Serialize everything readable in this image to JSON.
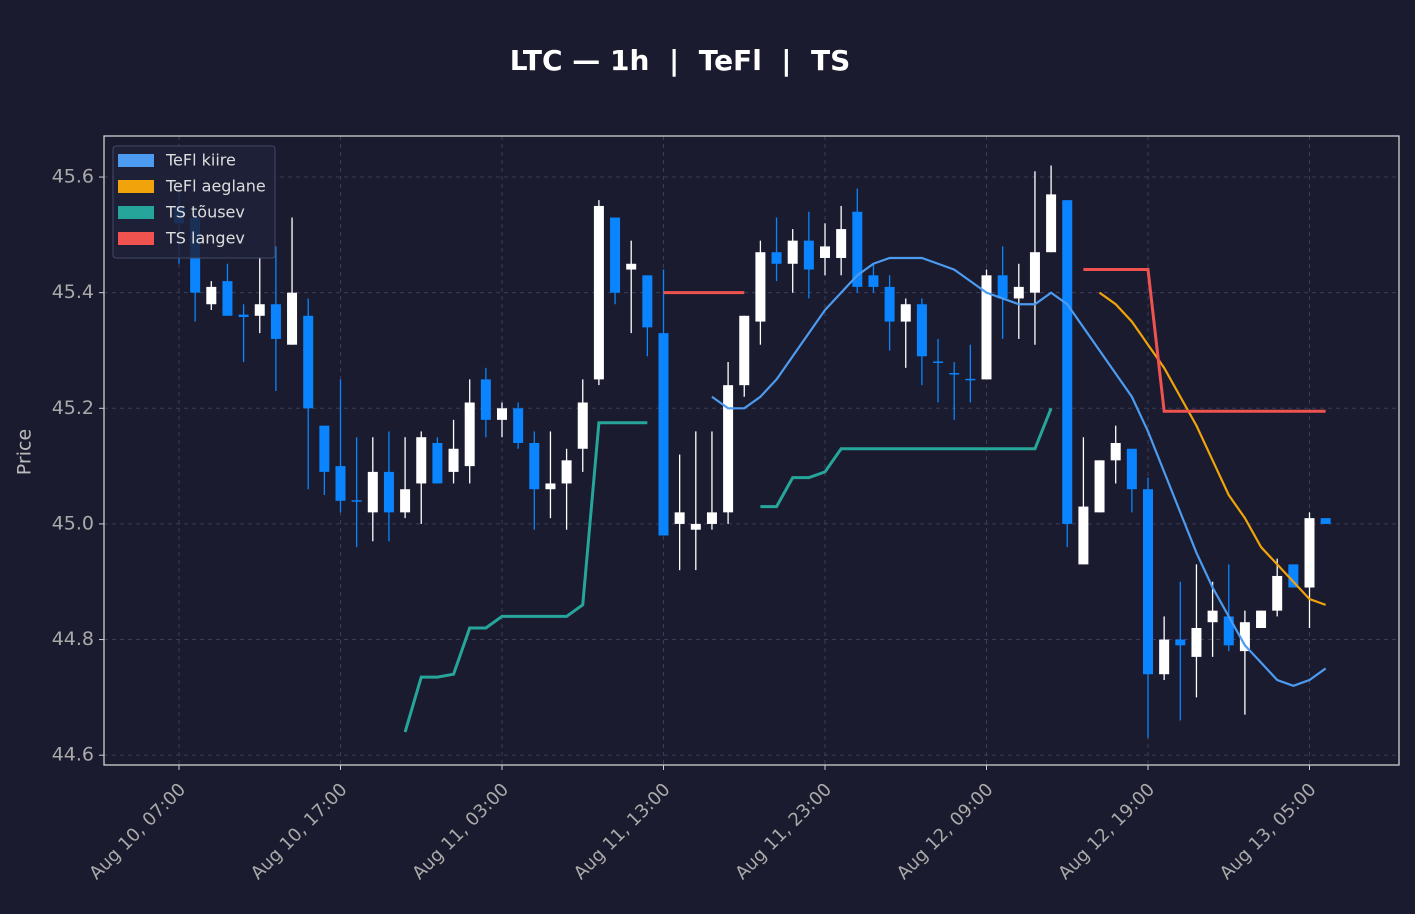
{
  "chart_data": {
    "type": "candlestick",
    "title": "LTC — 1h  |  TeFl  |  TS",
    "ylabel": "Price",
    "x": [
      "Aug 10, 07:00",
      "Aug 10, 08:00",
      "Aug 10, 09:00",
      "Aug 10, 10:00",
      "Aug 10, 11:00",
      "Aug 10, 12:00",
      "Aug 10, 13:00",
      "Aug 10, 14:00",
      "Aug 10, 15:00",
      "Aug 10, 16:00",
      "Aug 10, 17:00",
      "Aug 10, 18:00",
      "Aug 10, 19:00",
      "Aug 10, 20:00",
      "Aug 10, 21:00",
      "Aug 10, 22:00",
      "Aug 10, 23:00",
      "Aug 11, 00:00",
      "Aug 11, 01:00",
      "Aug 11, 02:00",
      "Aug 11, 03:00",
      "Aug 11, 04:00",
      "Aug 11, 05:00",
      "Aug 11, 06:00",
      "Aug 11, 07:00",
      "Aug 11, 08:00",
      "Aug 11, 09:00",
      "Aug 11, 10:00",
      "Aug 11, 11:00",
      "Aug 11, 12:00",
      "Aug 11, 13:00",
      "Aug 11, 14:00",
      "Aug 11, 15:00",
      "Aug 11, 16:00",
      "Aug 11, 17:00",
      "Aug 11, 18:00",
      "Aug 11, 19:00",
      "Aug 11, 20:00",
      "Aug 11, 21:00",
      "Aug 11, 22:00",
      "Aug 11, 23:00",
      "Aug 12, 00:00",
      "Aug 12, 01:00",
      "Aug 12, 02:00",
      "Aug 12, 03:00",
      "Aug 12, 04:00",
      "Aug 12, 05:00",
      "Aug 12, 06:00",
      "Aug 12, 07:00",
      "Aug 12, 08:00",
      "Aug 12, 09:00",
      "Aug 12, 10:00",
      "Aug 12, 11:00",
      "Aug 12, 12:00",
      "Aug 12, 13:00",
      "Aug 12, 14:00",
      "Aug 12, 15:00",
      "Aug 12, 16:00",
      "Aug 12, 17:00",
      "Aug 12, 18:00",
      "Aug 12, 19:00",
      "Aug 12, 20:00",
      "Aug 12, 21:00",
      "Aug 12, 22:00",
      "Aug 12, 23:00",
      "Aug 13, 00:00",
      "Aug 13, 01:00",
      "Aug 13, 02:00",
      "Aug 13, 03:00",
      "Aug 13, 04:00",
      "Aug 13, 05:00",
      "Aug 13, 06:00"
    ],
    "open": [
      45.55,
      45.53,
      45.38,
      45.42,
      45.362,
      45.36,
      45.38,
      45.31,
      45.36,
      45.17,
      45.1,
      45.041,
      45.02,
      45.09,
      45.02,
      45.07,
      45.14,
      45.09,
      45.1,
      45.25,
      45.18,
      45.2,
      45.14,
      45.06,
      45.07,
      45.13,
      45.25,
      45.53,
      45.44,
      45.43,
      45.33,
      45.0,
      44.99,
      45.0,
      45.02,
      45.24,
      45.35,
      45.47,
      45.45,
      45.49,
      45.46,
      45.46,
      45.54,
      45.43,
      45.41,
      45.35,
      45.38,
      45.281,
      45.261,
      45.251,
      45.25,
      45.43,
      45.39,
      45.4,
      45.47,
      45.56,
      44.93,
      45.02,
      45.11,
      45.13,
      45.06,
      44.74,
      44.8,
      44.77,
      44.83,
      44.84,
      44.78,
      44.82,
      44.85,
      44.93,
      44.89,
      45.01
    ],
    "high": [
      45.58,
      45.55,
      45.42,
      45.45,
      45.38,
      45.46,
      45.48,
      45.53,
      45.39,
      45.17,
      45.25,
      45.15,
      45.15,
      45.16,
      45.15,
      45.16,
      45.15,
      45.18,
      45.25,
      45.27,
      45.21,
      45.21,
      45.16,
      45.16,
      45.13,
      45.25,
      45.56,
      45.53,
      45.49,
      45.43,
      45.44,
      45.12,
      45.16,
      45.16,
      45.28,
      45.36,
      45.49,
      45.53,
      45.51,
      45.54,
      45.52,
      45.55,
      45.58,
      45.45,
      45.43,
      45.39,
      45.39,
      45.32,
      45.28,
      45.31,
      45.44,
      45.48,
      45.45,
      45.61,
      45.62,
      45.56,
      45.15,
      45.11,
      45.17,
      45.13,
      45.08,
      44.84,
      44.9,
      44.93,
      44.9,
      44.93,
      44.85,
      44.85,
      44.94,
      44.93,
      45.02,
      45.01
    ],
    "low": [
      45.45,
      45.35,
      45.37,
      45.36,
      45.28,
      45.33,
      45.23,
      45.31,
      45.06,
      45.05,
      45.02,
      44.96,
      44.97,
      44.97,
      45.01,
      45.0,
      45.07,
      45.07,
      45.07,
      45.15,
      45.15,
      45.13,
      44.99,
      45.01,
      44.99,
      45.09,
      45.24,
      45.38,
      45.33,
      45.29,
      44.98,
      44.92,
      44.92,
      44.99,
      45.0,
      45.22,
      45.31,
      45.42,
      45.4,
      45.39,
      45.43,
      45.43,
      45.4,
      45.4,
      45.3,
      45.27,
      45.24,
      45.21,
      45.18,
      45.21,
      45.25,
      45.32,
      45.32,
      45.31,
      45.47,
      44.96,
      44.93,
      45.02,
      45.07,
      45.02,
      44.63,
      44.73,
      44.66,
      44.7,
      44.77,
      44.78,
      44.67,
      44.82,
      44.84,
      44.89,
      44.82,
      45.0
    ],
    "close": [
      45.52,
      45.4,
      45.41,
      45.36,
      45.358,
      45.38,
      45.32,
      45.4,
      45.2,
      45.09,
      45.04,
      45.039,
      45.09,
      45.02,
      45.06,
      45.15,
      45.07,
      45.13,
      45.21,
      45.18,
      45.2,
      45.14,
      45.06,
      45.07,
      45.11,
      45.21,
      45.55,
      45.4,
      45.45,
      45.34,
      44.98,
      45.02,
      45.0,
      45.02,
      45.24,
      45.36,
      45.47,
      45.45,
      45.49,
      45.44,
      45.48,
      45.51,
      45.41,
      45.41,
      45.35,
      45.38,
      45.29,
      45.279,
      45.259,
      45.249,
      45.43,
      45.39,
      45.41,
      45.47,
      45.57,
      45.0,
      45.03,
      45.11,
      45.14,
      45.06,
      44.74,
      44.8,
      44.79,
      44.82,
      44.85,
      44.79,
      44.83,
      44.85,
      44.91,
      44.89,
      45.01,
      45.0
    ],
    "up_color": "#ffffff",
    "down_color": "#0a84ff",
    "series": [
      {
        "name": "TeFl kiire",
        "color": "#4c9bf0",
        "values": [
          null,
          null,
          null,
          null,
          null,
          null,
          null,
          null,
          null,
          null,
          null,
          null,
          null,
          null,
          null,
          null,
          null,
          null,
          null,
          null,
          null,
          null,
          null,
          null,
          null,
          null,
          null,
          null,
          null,
          null,
          null,
          null,
          null,
          45.22,
          45.2,
          45.2,
          45.22,
          45.25,
          45.29,
          45.33,
          45.37,
          45.4,
          45.43,
          45.45,
          45.46,
          45.46,
          45.46,
          45.45,
          45.44,
          45.42,
          45.4,
          45.39,
          45.38,
          45.38,
          45.4,
          45.38,
          45.34,
          45.3,
          45.26,
          45.22,
          45.16,
          45.09,
          45.02,
          44.95,
          44.89,
          44.84,
          44.79,
          44.76,
          44.73,
          44.72,
          44.73,
          44.75
        ]
      },
      {
        "name": "TeFl aeglane",
        "color": "#f0a30a",
        "values": [
          null,
          null,
          null,
          null,
          null,
          null,
          null,
          null,
          null,
          null,
          null,
          null,
          null,
          null,
          null,
          null,
          null,
          null,
          null,
          null,
          null,
          null,
          null,
          null,
          null,
          null,
          null,
          null,
          null,
          null,
          null,
          null,
          null,
          null,
          null,
          null,
          null,
          null,
          null,
          null,
          null,
          null,
          null,
          null,
          null,
          null,
          null,
          null,
          null,
          null,
          null,
          null,
          null,
          null,
          null,
          null,
          null,
          45.4,
          45.38,
          45.35,
          45.31,
          45.27,
          45.22,
          45.17,
          45.11,
          45.05,
          45.01,
          44.96,
          44.93,
          44.9,
          44.87,
          44.86
        ]
      },
      {
        "name": "TS tõusev",
        "color": "#26a69a",
        "values": [
          null,
          null,
          null,
          null,
          null,
          null,
          null,
          null,
          null,
          null,
          null,
          null,
          null,
          null,
          44.64,
          44.735,
          44.735,
          44.74,
          44.82,
          44.82,
          44.84,
          44.84,
          44.84,
          44.84,
          44.84,
          44.86,
          45.175,
          45.175,
          45.175,
          45.175,
          null,
          null,
          null,
          null,
          null,
          null,
          45.03,
          45.03,
          45.08,
          45.08,
          45.09,
          45.13,
          45.13,
          45.13,
          45.13,
          45.13,
          45.13,
          45.13,
          45.13,
          45.13,
          45.13,
          45.13,
          45.13,
          45.13,
          45.2,
          null,
          null,
          null,
          null,
          null,
          null,
          null,
          null,
          null,
          null,
          null,
          null,
          null,
          null,
          null,
          null,
          null
        ]
      },
      {
        "name": "TS langev",
        "color": "#ef5350",
        "values": [
          null,
          null,
          null,
          null,
          null,
          null,
          null,
          null,
          null,
          null,
          null,
          null,
          null,
          null,
          null,
          null,
          null,
          null,
          null,
          null,
          null,
          null,
          null,
          null,
          null,
          null,
          null,
          null,
          null,
          null,
          45.4,
          45.4,
          45.4,
          45.4,
          45.4,
          45.4,
          null,
          null,
          null,
          null,
          null,
          null,
          null,
          null,
          null,
          null,
          null,
          null,
          null,
          null,
          null,
          null,
          null,
          null,
          null,
          null,
          45.44,
          45.44,
          45.44,
          45.44,
          45.44,
          45.195,
          45.195,
          45.195,
          45.195,
          45.195,
          45.195,
          45.195,
          45.195,
          45.195,
          45.195,
          45.195
        ]
      }
    ],
    "ylim": [
      44.583,
      45.671
    ],
    "yticks": [
      44.6,
      44.8,
      {
        "value": 45,
        "label": "45.0"
      },
      45.2,
      45.4,
      45.6
    ],
    "xticks": [
      "Aug 10, 07:00",
      "Aug 10, 17:00",
      "Aug 11, 03:00",
      "Aug 11, 13:00",
      "Aug 11, 23:00",
      "Aug 12, 09:00",
      "Aug 12, 19:00",
      "Aug 13, 05:00"
    ],
    "grid": true,
    "legend": "upper-left"
  }
}
